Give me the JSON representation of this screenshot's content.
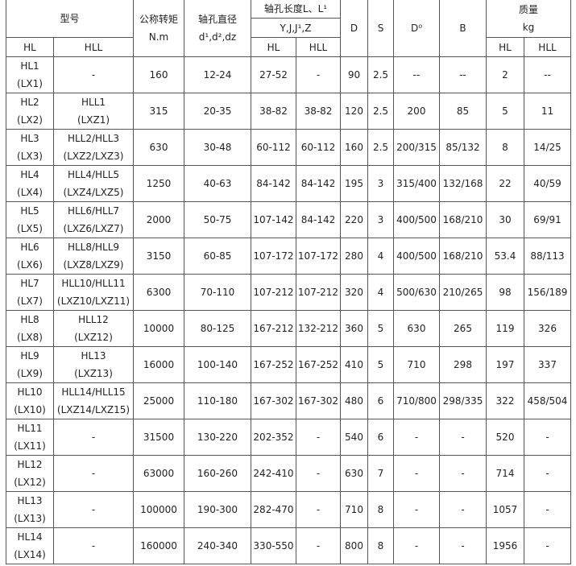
{
  "header": {
    "model": "型号",
    "torque": "公称转矩",
    "torque_unit": "N.m",
    "bore": "轴孔直径",
    "bore_sub": "d¹,d²,dz",
    "length": "轴孔长度L、L¹",
    "length_sub": "Y,J,J¹,Z",
    "D": "D",
    "S": "S",
    "D0": "D⁰",
    "B": "B",
    "mass": "质量",
    "mass_unit": "kg",
    "hl": "HL",
    "hll": "HLL"
  },
  "rows": [
    {
      "hl": "HL1",
      "hl2": "(LX1)",
      "hll": "-",
      "hll2": "",
      "t": "160",
      "d": "12-24",
      "lhl": "27-52",
      "lhll": "-",
      "D": "90",
      "S": "2.5",
      "D0": "--",
      "B": "--",
      "mhl": "2",
      "mhll": "--"
    },
    {
      "hl": "HL2",
      "hl2": "(LX2)",
      "hll": "HLL1",
      "hll2": "(LXZ1)",
      "t": "315",
      "d": "20-35",
      "lhl": "38-82",
      "lhll": "38-82",
      "D": "120",
      "S": "2.5",
      "D0": "200",
      "B": "85",
      "mhl": "5",
      "mhll": "11"
    },
    {
      "hl": "HL3",
      "hl2": "(LX3)",
      "hll": "HLL2/HLL3",
      "hll2": "(LXZ2/LXZ3)",
      "t": "630",
      "d": "30-48",
      "lhl": "60-112",
      "lhll": "60-112",
      "D": "160",
      "S": "2.5",
      "D0": "200/315",
      "B": "85/132",
      "mhl": "8",
      "mhll": "14/25"
    },
    {
      "hl": "HL4",
      "hl2": "(LX4)",
      "hll": "HLL4/HLL5",
      "hll2": "(LXZ4/LXZ5)",
      "t": "1250",
      "d": "40-63",
      "lhl": "84-142",
      "lhll": "84-142",
      "D": "195",
      "S": "3",
      "D0": "315/400",
      "B": "132/168",
      "mhl": "22",
      "mhll": "40/59"
    },
    {
      "hl": "HL5",
      "hl2": "(LX5)",
      "hll": "HLL6/HLL7",
      "hll2": "(LXZ6/LXZ7)",
      "t": "2000",
      "d": "50-75",
      "lhl": "107-142",
      "lhll": "84-142",
      "D": "220",
      "S": "3",
      "D0": "400/500",
      "B": "168/210",
      "mhl": "30",
      "mhll": "69/91"
    },
    {
      "hl": "HL6",
      "hl2": "(LX6)",
      "hll": "HLL8/HLL9",
      "hll2": "(LXZ8/LXZ9)",
      "t": "3150",
      "d": "60-85",
      "lhl": "107-172",
      "lhll": "107-172",
      "D": "280",
      "S": "4",
      "D0": "400/500",
      "B": "168/210",
      "mhl": "53.4",
      "mhll": "88/113"
    },
    {
      "hl": "HL7",
      "hl2": "(LX7)",
      "hll": "HLL10/HLL11",
      "hll2": "(LXZ10/LXZ11)",
      "t": "6300",
      "d": "70-110",
      "lhl": "107-212",
      "lhll": "107-212",
      "D": "320",
      "S": "4",
      "D0": "500/630",
      "B": "210/265",
      "mhl": "98",
      "mhll": "156/189"
    },
    {
      "hl": "HL8",
      "hl2": "(LX8)",
      "hll": "HLL12",
      "hll2": "(LXZ12)",
      "t": "10000",
      "d": "80-125",
      "lhl": "167-212",
      "lhll": "132-212",
      "D": "360",
      "S": "5",
      "D0": "630",
      "B": "265",
      "mhl": "119",
      "mhll": "326"
    },
    {
      "hl": "HL9",
      "hl2": "(LX9)",
      "hll": "HL13",
      "hll2": "(LXZ13)",
      "t": "16000",
      "d": "100-140",
      "lhl": "167-252",
      "lhll": "167-252",
      "D": "410",
      "S": "5",
      "D0": "710",
      "B": "298",
      "mhl": "197",
      "mhll": "337"
    },
    {
      "hl": "HL10",
      "hl2": "(LX10)",
      "hll": "HLL14/HLL15",
      "hll2": "(LXZ14/LXZ15)",
      "t": "25000",
      "d": "110-180",
      "lhl": "167-302",
      "lhll": "167-302",
      "D": "480",
      "S": "6",
      "D0": "710/800",
      "B": "298/335",
      "mhl": "322",
      "mhll": "458/504"
    },
    {
      "hl": "HL11",
      "hl2": "(LX11)",
      "hll": "-",
      "hll2": "",
      "t": "31500",
      "d": "130-220",
      "lhl": "202-352",
      "lhll": "-",
      "D": "540",
      "S": "6",
      "D0": "-",
      "B": "-",
      "mhl": "520",
      "mhll": "-"
    },
    {
      "hl": "HL12",
      "hl2": "(LX12)",
      "hll": "-",
      "hll2": "",
      "t": "63000",
      "d": "160-260",
      "lhl": "242-410",
      "lhll": "-",
      "D": "630",
      "S": "7",
      "D0": "-",
      "B": "-",
      "mhl": "714",
      "mhll": "-"
    },
    {
      "hl": "HL13",
      "hl2": "(LX13)",
      "hll": "-",
      "hll2": "",
      "t": "100000",
      "d": "190-300",
      "lhl": "282-470",
      "lhll": "-",
      "D": "710",
      "S": "8",
      "D0": "-",
      "B": "-",
      "mhl": "1057",
      "mhll": "-"
    },
    {
      "hl": "HL14",
      "hl2": "(LX14)",
      "hll": "-",
      "hll2": "",
      "t": "160000",
      "d": "240-340",
      "lhl": "330-550",
      "lhll": "-",
      "D": "800",
      "S": "8",
      "D0": "-",
      "B": "-",
      "mhl": "1956",
      "mhll": "-"
    }
  ]
}
